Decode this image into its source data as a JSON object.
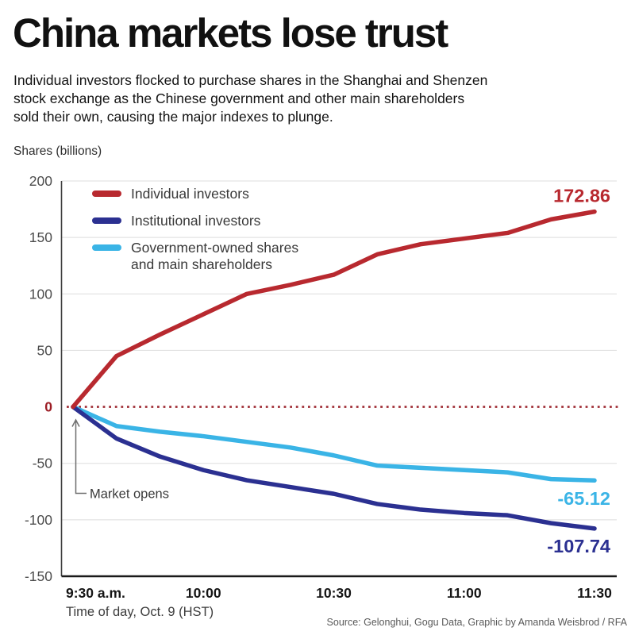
{
  "title": "China markets lose trust",
  "subtitle_lines": [
    "Individual investors flocked to purchase shares in the Shanghai and Shenzen",
    "stock exchange as the Chinese government and other main shareholders",
    "sold their own, causing the major indexes to plunge."
  ],
  "y_axis_unit": "Shares (billions)",
  "x_axis_caption": "Time of day, Oct. 9 (HST)",
  "source": "Source: Gelonghui, Gogu Data, Graphic by Amanda Weisbrod / RFA",
  "annotations": {
    "market_opens": "Market opens"
  },
  "colors": {
    "red": "#b8292f",
    "navy": "#2b3091",
    "light_blue": "#3ab4e6",
    "zero_line": "#9e2a32",
    "gridline": "#dedede",
    "axis": "#1a1a1a"
  },
  "chart_data": {
    "type": "line",
    "title": "China markets lose trust",
    "xlabel": "Time of day, Oct. 9 (HST)",
    "ylabel": "Shares (billions)",
    "ylim": [
      -150,
      200
    ],
    "y_ticks": [
      200,
      150,
      100,
      50,
      0,
      -50,
      -100,
      -150
    ],
    "x_tick_labels": [
      "9:30 a.m.",
      "10:00",
      "10:30",
      "11:00",
      "11:30"
    ],
    "x_tick_minutes": [
      0,
      30,
      60,
      90,
      120
    ],
    "x_minutes": [
      0,
      10,
      20,
      30,
      40,
      50,
      60,
      70,
      80,
      90,
      100,
      110,
      120
    ],
    "grid": true,
    "legend_position": "top-left",
    "zero_line_style": "dotted",
    "series": [
      {
        "name": "Individual investors",
        "color": "#b8292f",
        "end_label": "172.86",
        "values": [
          0,
          45,
          64,
          82,
          100,
          108,
          117,
          135,
          144,
          149,
          154,
          166,
          172.86
        ]
      },
      {
        "name": "Institutional investors",
        "color": "#2b3091",
        "end_label": "-107.74",
        "values": [
          0,
          -28,
          -44,
          -56,
          -65,
          -71,
          -77,
          -86,
          -91,
          -94,
          -96,
          -103,
          -107.74
        ]
      },
      {
        "name": "Government-owned shares and main shareholders",
        "color": "#3ab4e6",
        "end_label": "-65.12",
        "values": [
          0,
          -17,
          -22,
          -26,
          -31,
          -36,
          -43,
          -52,
          -54,
          -56,
          -58,
          -64,
          -65.12
        ]
      }
    ]
  }
}
